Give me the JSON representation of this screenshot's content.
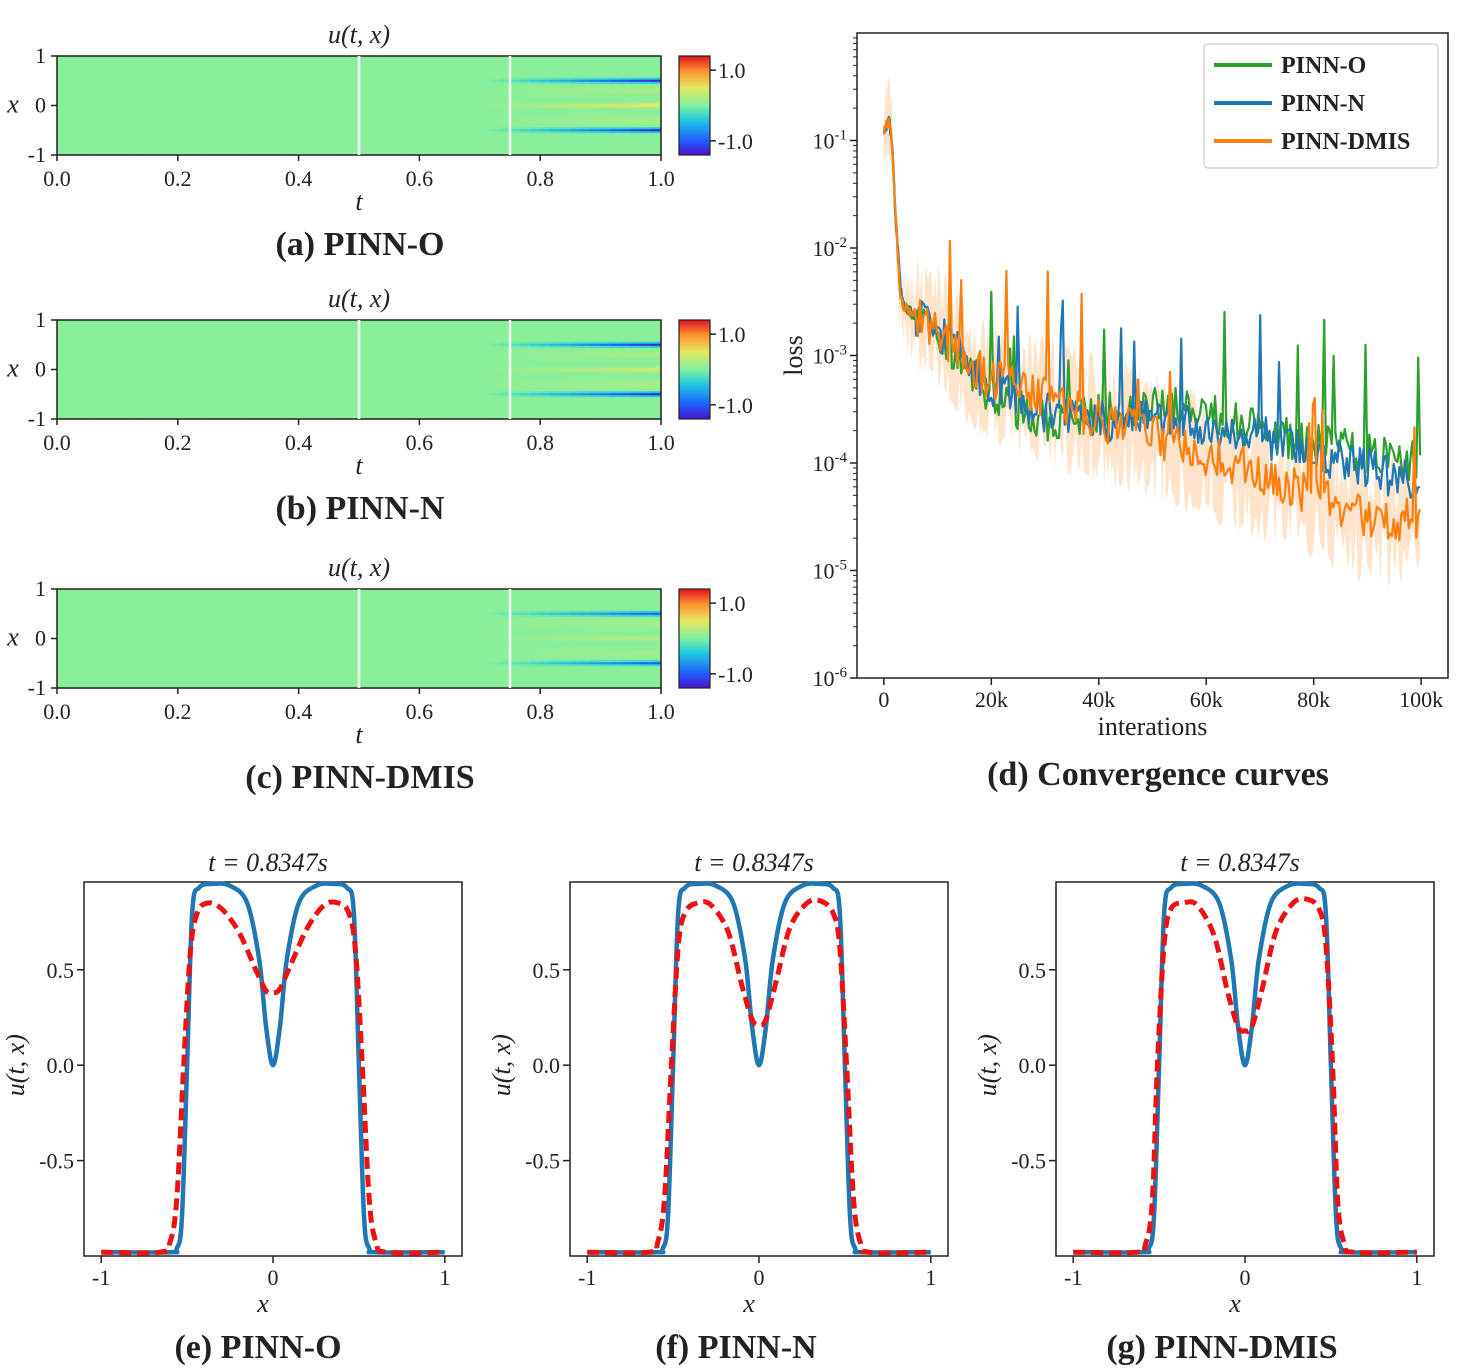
{
  "chart_data": [
    {
      "id": "a",
      "type": "heatmap",
      "title": "u(t, x)",
      "caption": "(a) PINN-O",
      "xlabel": "t",
      "ylabel": "x",
      "xlim": [
        0.0,
        1.0
      ],
      "ylim": [
        -1,
        1
      ],
      "xticks": [
        "0.0",
        "0.2",
        "0.4",
        "0.6",
        "0.8",
        "1.0"
      ],
      "yticks": [
        "-1",
        "0",
        "1"
      ],
      "vlines": [
        0.5,
        0.75
      ],
      "colorbar_ticks": [
        "1.0",
        "-1.0"
      ],
      "colorbar_range": [
        -1.4,
        1.4
      ],
      "final_profile_strength": 1.0,
      "center_hot": 0.35
    },
    {
      "id": "b",
      "type": "heatmap",
      "title": "u(t, x)",
      "caption": "(b) PINN-N",
      "xlabel": "t",
      "ylabel": "x",
      "xlim": [
        0.0,
        1.0
      ],
      "ylim": [
        -1,
        1
      ],
      "xticks": [
        "0.0",
        "0.2",
        "0.4",
        "0.6",
        "0.8",
        "1.0"
      ],
      "yticks": [
        "-1",
        "0",
        "1"
      ],
      "vlines": [
        0.5,
        0.75
      ],
      "colorbar_ticks": [
        "1.0",
        "-1.0"
      ],
      "colorbar_range": [
        -1.4,
        1.4
      ],
      "final_profile_strength": 1.0,
      "center_hot": 0.25
    },
    {
      "id": "c",
      "type": "heatmap",
      "title": "u(t, x)",
      "caption": "(c) PINN-DMIS",
      "xlabel": "t",
      "ylabel": "x",
      "xlim": [
        0.0,
        1.0
      ],
      "ylim": [
        -1,
        1
      ],
      "xticks": [
        "0.0",
        "0.2",
        "0.4",
        "0.6",
        "0.8",
        "1.0"
      ],
      "yticks": [
        "-1",
        "0",
        "1"
      ],
      "vlines": [
        0.5,
        0.75
      ],
      "colorbar_ticks": [
        "1.0",
        "-1.0"
      ],
      "colorbar_range": [
        -1.4,
        1.4
      ],
      "final_profile_strength": 0.8,
      "center_hot": 0.2
    },
    {
      "id": "d",
      "type": "line",
      "caption": "(d) Convergence curves",
      "xlabel": "interations",
      "ylabel": "loss",
      "yscale": "log",
      "xlim": [
        -5000,
        105000
      ],
      "ylim": [
        1e-06,
        1
      ],
      "xticks": [
        0,
        20000,
        40000,
        60000,
        80000,
        100000
      ],
      "xtick_labels": [
        "0",
        "20k",
        "40k",
        "60k",
        "80k",
        "100k"
      ],
      "ytick_labels": [
        "10-1",
        "10-2",
        "10-3",
        "10-4",
        "10-5",
        "10-6"
      ],
      "legend_position": "top-right",
      "series": [
        {
          "name": "PINN-O",
          "color": "#2ca02c",
          "x": [
            0,
            1000,
            1500,
            2000,
            2500,
            3000,
            3500,
            5000,
            10000,
            15000,
            20000,
            30000,
            40000,
            50000,
            60000,
            70000,
            80000,
            90000,
            100000
          ],
          "y": [
            0.13,
            0.15,
            0.1,
            0.03,
            0.01,
            0.004,
            0.003,
            0.0025,
            0.0018,
            0.0008,
            0.0004,
            0.00025,
            0.0003,
            0.00035,
            0.0003,
            0.0002,
            0.00015,
            0.00012,
            0.0001
          ]
        },
        {
          "name": "PINN-N",
          "color": "#1f77b4",
          "x": [
            0,
            1000,
            1500,
            2000,
            2500,
            3000,
            3500,
            5000,
            10000,
            15000,
            20000,
            30000,
            40000,
            50000,
            60000,
            70000,
            80000,
            90000,
            100000
          ],
          "y": [
            0.13,
            0.15,
            0.1,
            0.03,
            0.012,
            0.005,
            0.003,
            0.0025,
            0.0018,
            0.0009,
            0.0005,
            0.0003,
            0.00025,
            0.00025,
            0.00022,
            0.00018,
            0.00012,
            9e-05,
            6e-05
          ]
        },
        {
          "name": "PINN-DMIS",
          "color": "#ff7f0e",
          "x": [
            0,
            1000,
            1500,
            2000,
            2500,
            3000,
            3500,
            5000,
            10000,
            15000,
            20000,
            30000,
            40000,
            50000,
            60000,
            70000,
            80000,
            90000,
            100000
          ],
          "y": [
            0.13,
            0.15,
            0.1,
            0.03,
            0.01,
            0.004,
            0.003,
            0.0025,
            0.0018,
            0.0009,
            0.0006,
            0.0004,
            0.00025,
            0.00018,
            0.00012,
            8e-05,
            5e-05,
            3e-05,
            3e-05
          ]
        }
      ]
    },
    {
      "id": "e",
      "type": "line",
      "title": "t = 0.8347s",
      "caption": "(e) PINN-O",
      "xlabel": "x",
      "ylabel": "u(t, x)",
      "xlim": [
        -1.1,
        1.1
      ],
      "ylim": [
        -1.0,
        0.96
      ],
      "xticks": [
        -1,
        0,
        1
      ],
      "xtick_labels": [
        "-1",
        "0",
        "1"
      ],
      "yticks": [
        0.5,
        0.0,
        -0.5
      ],
      "ytick_labels": [
        "0.5",
        "0.0",
        "-0.5"
      ],
      "series": [
        {
          "role": "exact",
          "color": "#1f77b4",
          "style": "solid",
          "x": [
            -1.0,
            -0.6,
            -0.56,
            -0.53,
            -0.5,
            -0.47,
            -0.43,
            -0.35,
            -0.25,
            -0.15,
            -0.08,
            -0.04,
            0.0,
            0.04,
            0.08,
            0.15,
            0.25,
            0.35,
            0.43,
            0.47,
            0.5,
            0.53,
            0.56,
            0.6,
            1.0
          ],
          "y": [
            -0.98,
            -0.98,
            -0.96,
            -0.8,
            0.0,
            0.8,
            0.93,
            0.95,
            0.94,
            0.85,
            0.55,
            0.2,
            0.0,
            0.2,
            0.55,
            0.85,
            0.94,
            0.95,
            0.93,
            0.8,
            0.0,
            -0.8,
            -0.96,
            -0.98,
            -0.98
          ]
        },
        {
          "role": "predicted",
          "color": "#ee1111",
          "style": "dashed",
          "x": [
            -1.0,
            -0.66,
            -0.6,
            -0.56,
            -0.52,
            -0.48,
            -0.44,
            -0.38,
            -0.3,
            -0.2,
            -0.1,
            -0.04,
            0.0,
            0.04,
            0.1,
            0.2,
            0.3,
            0.38,
            0.44,
            0.48,
            0.52,
            0.56,
            0.6,
            0.66,
            1.0
          ],
          "y": [
            -0.98,
            -0.98,
            -0.93,
            -0.7,
            0.0,
            0.6,
            0.8,
            0.85,
            0.82,
            0.7,
            0.5,
            0.39,
            0.38,
            0.4,
            0.52,
            0.72,
            0.84,
            0.85,
            0.8,
            0.6,
            0.0,
            -0.7,
            -0.93,
            -0.98,
            -0.98
          ]
        }
      ]
    },
    {
      "id": "f",
      "type": "line",
      "title": "t = 0.8347s",
      "caption": "(f) PINN-N",
      "xlabel": "x",
      "ylabel": "u(t, x)",
      "xlim": [
        -1.1,
        1.1
      ],
      "ylim": [
        -1.0,
        0.96
      ],
      "xticks": [
        -1,
        0,
        1
      ],
      "xtick_labels": [
        "-1",
        "0",
        "1"
      ],
      "yticks": [
        0.5,
        0.0,
        -0.5
      ],
      "ytick_labels": [
        "0.5",
        "0.0",
        "-0.5"
      ],
      "series": [
        {
          "role": "exact",
          "color": "#1f77b4",
          "style": "solid",
          "x": [
            -1.0,
            -0.6,
            -0.56,
            -0.53,
            -0.5,
            -0.47,
            -0.43,
            -0.35,
            -0.25,
            -0.15,
            -0.08,
            -0.04,
            0.0,
            0.04,
            0.08,
            0.15,
            0.25,
            0.35,
            0.43,
            0.47,
            0.5,
            0.53,
            0.56,
            0.6,
            1.0
          ],
          "y": [
            -0.98,
            -0.98,
            -0.96,
            -0.8,
            0.0,
            0.8,
            0.93,
            0.95,
            0.94,
            0.85,
            0.55,
            0.2,
            0.0,
            0.2,
            0.55,
            0.85,
            0.94,
            0.95,
            0.93,
            0.8,
            0.0,
            -0.8,
            -0.96,
            -0.98,
            -0.98
          ]
        },
        {
          "role": "predicted",
          "color": "#ee1111",
          "style": "dashed",
          "x": [
            -1.0,
            -0.64,
            -0.59,
            -0.55,
            -0.51,
            -0.47,
            -0.43,
            -0.36,
            -0.28,
            -0.18,
            -0.1,
            -0.04,
            0.0,
            0.04,
            0.1,
            0.18,
            0.28,
            0.36,
            0.43,
            0.47,
            0.51,
            0.55,
            0.59,
            0.64,
            1.0
          ],
          "y": [
            -0.98,
            -0.98,
            -0.93,
            -0.7,
            0.0,
            0.62,
            0.8,
            0.85,
            0.84,
            0.7,
            0.42,
            0.24,
            0.21,
            0.24,
            0.44,
            0.72,
            0.85,
            0.86,
            0.8,
            0.62,
            0.0,
            -0.7,
            -0.93,
            -0.98,
            -0.98
          ]
        }
      ]
    },
    {
      "id": "g",
      "type": "line",
      "title": "t = 0.8347s",
      "caption": "(g) PINN-DMIS",
      "xlabel": "x",
      "ylabel": "u(t, x)",
      "xlim": [
        -1.1,
        1.1
      ],
      "ylim": [
        -1.0,
        0.96
      ],
      "xticks": [
        -1,
        0,
        1
      ],
      "xtick_labels": [
        "-1",
        "0",
        "1"
      ],
      "yticks": [
        0.5,
        0.0,
        -0.5
      ],
      "ytick_labels": [
        "0.5",
        "0.0",
        "-0.5"
      ],
      "series": [
        {
          "role": "exact",
          "color": "#1f77b4",
          "style": "solid",
          "x": [
            -1.0,
            -0.6,
            -0.56,
            -0.53,
            -0.5,
            -0.47,
            -0.43,
            -0.35,
            -0.25,
            -0.15,
            -0.08,
            -0.04,
            0.0,
            0.04,
            0.08,
            0.15,
            0.25,
            0.35,
            0.43,
            0.47,
            0.5,
            0.53,
            0.56,
            0.6,
            1.0
          ],
          "y": [
            -0.98,
            -0.98,
            -0.96,
            -0.8,
            0.0,
            0.8,
            0.93,
            0.95,
            0.94,
            0.85,
            0.55,
            0.2,
            0.0,
            0.2,
            0.55,
            0.85,
            0.94,
            0.95,
            0.93,
            0.8,
            0.0,
            -0.8,
            -0.96,
            -0.98,
            -0.98
          ]
        },
        {
          "role": "predicted",
          "color": "#ee1111",
          "style": "dashed",
          "x": [
            -1.0,
            -0.63,
            -0.58,
            -0.54,
            -0.51,
            -0.47,
            -0.43,
            -0.36,
            -0.28,
            -0.18,
            -0.1,
            -0.04,
            0.0,
            0.04,
            0.1,
            0.18,
            0.28,
            0.36,
            0.43,
            0.47,
            0.51,
            0.54,
            0.58,
            0.63,
            1.0
          ],
          "y": [
            -0.98,
            -0.98,
            -0.94,
            -0.72,
            0.0,
            0.64,
            0.82,
            0.85,
            0.84,
            0.68,
            0.38,
            0.2,
            0.18,
            0.2,
            0.4,
            0.7,
            0.85,
            0.87,
            0.82,
            0.64,
            0.0,
            -0.72,
            -0.94,
            -0.98,
            -0.98
          ]
        }
      ]
    }
  ]
}
